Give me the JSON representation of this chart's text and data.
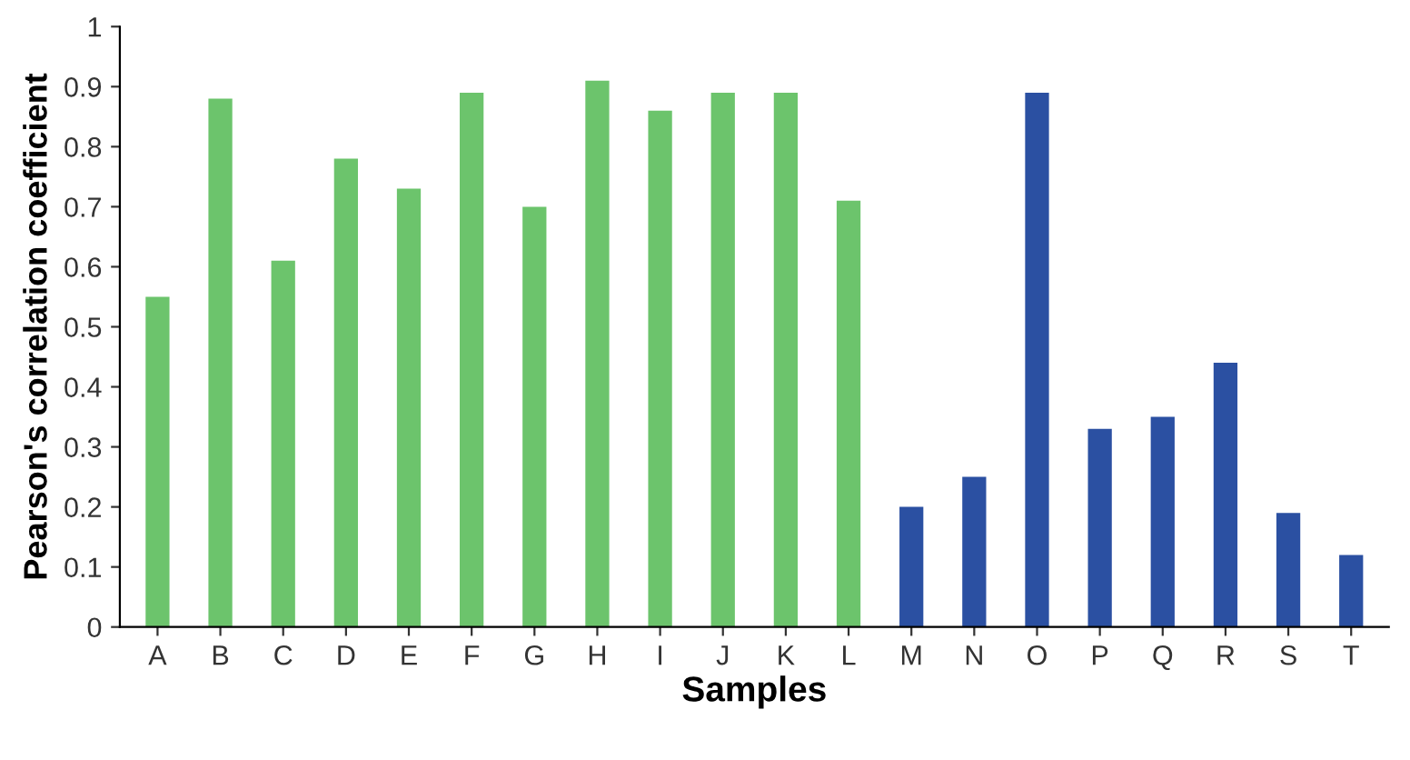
{
  "chart_data": {
    "type": "bar",
    "xlabel": "Samples",
    "ylabel": "Pearson's correlation coefficient",
    "categories": [
      "A",
      "B",
      "C",
      "D",
      "E",
      "F",
      "G",
      "H",
      "I",
      "J",
      "K",
      "L",
      "M",
      "N",
      "O",
      "P",
      "Q",
      "R",
      "S",
      "T"
    ],
    "values": [
      0.55,
      0.88,
      0.61,
      0.78,
      0.73,
      0.89,
      0.7,
      0.91,
      0.86,
      0.89,
      0.89,
      0.71,
      0.2,
      0.25,
      0.89,
      0.33,
      0.35,
      0.44,
      0.19,
      0.12
    ],
    "colors": [
      "#6cc46c",
      "#6cc46c",
      "#6cc46c",
      "#6cc46c",
      "#6cc46c",
      "#6cc46c",
      "#6cc46c",
      "#6cc46c",
      "#6cc46c",
      "#6cc46c",
      "#6cc46c",
      "#6cc46c",
      "#2b50a2",
      "#2b50a2",
      "#2b50a2",
      "#2b50a2",
      "#2b50a2",
      "#2b50a2",
      "#2b50a2",
      "#2b50a2"
    ],
    "ylim": [
      0,
      1
    ],
    "yticks": [
      0,
      0.1,
      0.2,
      0.3,
      0.4,
      0.5,
      0.6,
      0.7,
      0.8,
      0.9,
      1
    ],
    "grid": false
  }
}
